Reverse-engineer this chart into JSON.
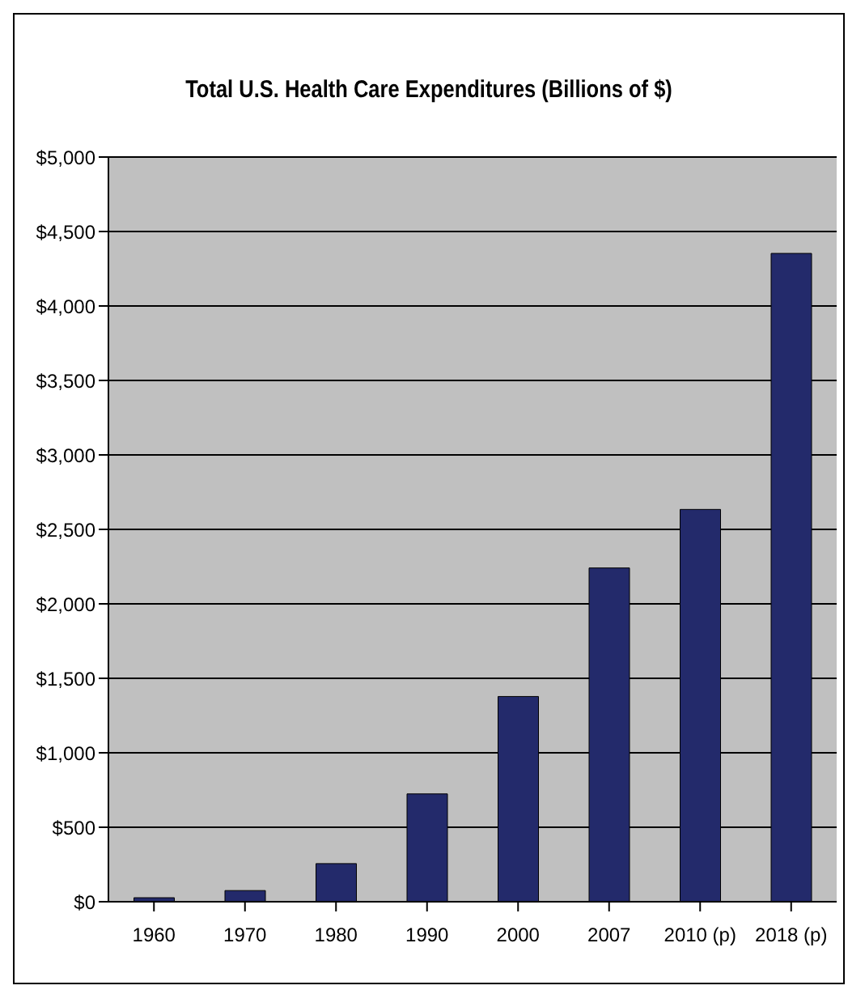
{
  "chart_data": {
    "type": "bar",
    "title": "Total U.S. Health Care Expenditures (Billions of $)",
    "categories": [
      "1960",
      "1970",
      "1980",
      "1990",
      "2000",
      "2007",
      "2010 (p)",
      "2018 (p)"
    ],
    "values": [
      27,
      75,
      256,
      724,
      1378,
      2241,
      2634,
      4353
    ],
    "color": "#232a6b",
    "ylim": [
      0,
      5000
    ],
    "yticks": [
      {
        "value": 0,
        "label": "$0"
      },
      {
        "value": 500,
        "label": "$500"
      },
      {
        "value": 1000,
        "label": "$1,000"
      },
      {
        "value": 1500,
        "label": "$1,500"
      },
      {
        "value": 2000,
        "label": "$2,000"
      },
      {
        "value": 2500,
        "label": "$2,500"
      },
      {
        "value": 3000,
        "label": "$3,000"
      },
      {
        "value": 3500,
        "label": "$3,500"
      },
      {
        "value": 4000,
        "label": "$4,000"
      },
      {
        "value": 4500,
        "label": "$4,500"
      },
      {
        "value": 5000,
        "label": "$5,000"
      }
    ],
    "grid": "y"
  }
}
